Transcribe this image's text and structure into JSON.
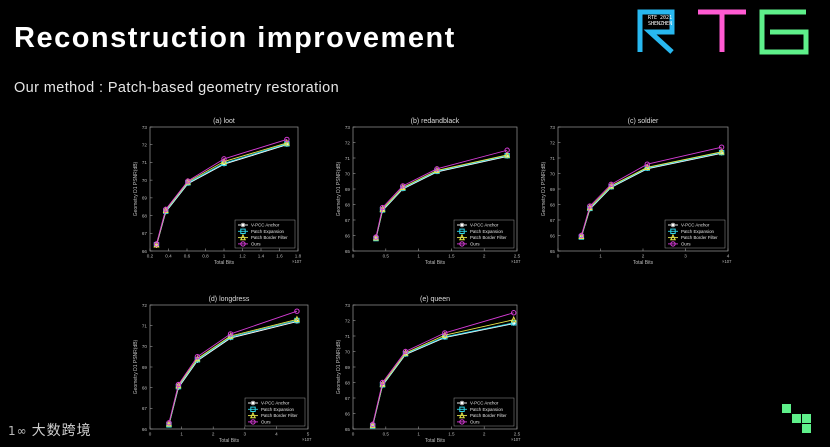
{
  "slide": {
    "title": "Reconstruction improvement",
    "subtitle": "Our method : Patch-based geometry restoration",
    "logo": {
      "text": "RTE",
      "badge_line1": "RTE 2021",
      "badge_line2": "SHENZHEN",
      "colors": [
        "#28b8f0",
        "#ff5ad2",
        "#5ef08a",
        "#9aa2ff"
      ]
    },
    "watermark": "大数跨境",
    "watermark_mark": "1∞"
  },
  "chart_data": [
    {
      "type": "line",
      "title": "(a) loot",
      "xlabel": "Total Bits",
      "ylabel": "Geometry D1 PSNR(dB)",
      "xlim": [
        0.2,
        1.8
      ],
      "ylim": [
        66,
        73
      ],
      "xticks": [
        0.2,
        0.4,
        0.6,
        0.8,
        1,
        1.2,
        1.4,
        1.6,
        1.8
      ],
      "xtick_labels": [
        "0.2",
        "0.4",
        "0.6",
        "0.8",
        "1",
        "1.2",
        "1.4",
        "1.6",
        "1.8"
      ],
      "yticks": [
        66,
        67,
        68,
        69,
        70,
        71,
        72,
        73
      ],
      "exponent": "×10^7",
      "legend_position": "bottom-right",
      "x": [
        0.27,
        0.37,
        0.61,
        1.0,
        1.68
      ],
      "series": [
        {
          "name": "V-PCC Anchor",
          "values": [
            66.3,
            68.2,
            69.8,
            70.9,
            72.0
          ]
        },
        {
          "name": "Patch Expansion",
          "values": [
            66.35,
            68.25,
            69.85,
            70.95,
            72.05
          ]
        },
        {
          "name": "Patch Border Filter",
          "values": [
            66.35,
            68.3,
            69.9,
            71.05,
            72.1
          ]
        },
        {
          "name": "Ours",
          "values": [
            66.4,
            68.35,
            69.95,
            71.2,
            72.3
          ]
        }
      ]
    },
    {
      "type": "line",
      "title": "(b) redandblack",
      "xlabel": "Total Bits",
      "ylabel": "Geometry D1 PSNR(dB)",
      "xlim": [
        0,
        2.5
      ],
      "ylim": [
        65,
        73
      ],
      "xticks": [
        0,
        0.5,
        1,
        1.5,
        2,
        2.5
      ],
      "xtick_labels": [
        "0",
        "0.5",
        "1",
        "1.5",
        "2",
        "2.5"
      ],
      "yticks": [
        65,
        66,
        67,
        68,
        69,
        70,
        71,
        72,
        73
      ],
      "exponent": "×10^7",
      "legend_position": "bottom-right",
      "x": [
        0.35,
        0.45,
        0.76,
        1.28,
        2.35
      ],
      "series": [
        {
          "name": "V-PCC Anchor",
          "values": [
            65.8,
            67.6,
            69.0,
            70.1,
            71.1
          ]
        },
        {
          "name": "Patch Expansion",
          "values": [
            65.8,
            67.65,
            69.05,
            70.15,
            71.15
          ]
        },
        {
          "name": "Patch Border Filter",
          "values": [
            65.85,
            67.7,
            69.1,
            70.2,
            71.2
          ]
        },
        {
          "name": "Ours",
          "values": [
            65.9,
            67.8,
            69.2,
            70.3,
            71.5
          ]
        }
      ]
    },
    {
      "type": "line",
      "title": "(c) soldier",
      "xlabel": "Total Bits",
      "ylabel": "Geometry D1 PSNR(dB)",
      "xlim": [
        0,
        4
      ],
      "ylim": [
        65,
        73
      ],
      "xticks": [
        0,
        1,
        2,
        3,
        4
      ],
      "xtick_labels": [
        "0",
        "1",
        "2",
        "3",
        "4"
      ],
      "yticks": [
        65,
        66,
        67,
        68,
        69,
        70,
        71,
        72,
        73
      ],
      "exponent": "×10^7",
      "legend_position": "bottom-right",
      "x": [
        0.55,
        0.75,
        1.25,
        2.1,
        3.85
      ],
      "series": [
        {
          "name": "V-PCC Anchor",
          "values": [
            65.9,
            67.7,
            69.1,
            70.3,
            71.3
          ]
        },
        {
          "name": "Patch Expansion",
          "values": [
            65.9,
            67.75,
            69.15,
            70.35,
            71.35
          ]
        },
        {
          "name": "Patch Border Filter",
          "values": [
            65.95,
            67.8,
            69.2,
            70.4,
            71.4
          ]
        },
        {
          "name": "Ours",
          "values": [
            66.0,
            67.9,
            69.3,
            70.6,
            71.7
          ]
        }
      ]
    },
    {
      "type": "line",
      "title": "(d) longdress",
      "xlabel": "Total Bits",
      "ylabel": "Geometry D1 PSNR(dB)",
      "xlim": [
        0,
        5
      ],
      "ylim": [
        66,
        72
      ],
      "xticks": [
        0,
        1,
        2,
        3,
        4,
        5
      ],
      "xtick_labels": [
        "0",
        "1",
        "2",
        "3",
        "4",
        "5"
      ],
      "yticks": [
        66,
        67,
        68,
        69,
        70,
        71,
        72
      ],
      "exponent": "×10^7",
      "legend_position": "bottom-right",
      "x": [
        0.6,
        0.9,
        1.5,
        2.55,
        4.65
      ],
      "series": [
        {
          "name": "V-PCC Anchor",
          "values": [
            66.2,
            68.0,
            69.3,
            70.4,
            71.2
          ]
        },
        {
          "name": "Patch Expansion",
          "values": [
            66.2,
            68.05,
            69.35,
            70.45,
            71.25
          ]
        },
        {
          "name": "Patch Border Filter",
          "values": [
            66.25,
            68.1,
            69.4,
            70.5,
            71.3
          ]
        },
        {
          "name": "Ours",
          "values": [
            66.3,
            68.15,
            69.5,
            70.6,
            71.7
          ]
        }
      ]
    },
    {
      "type": "line",
      "title": "(e) queen",
      "xlabel": "Total Bits",
      "ylabel": "Geometry D1 PSNR(dB)",
      "xlim": [
        0,
        2.5
      ],
      "ylim": [
        65,
        73
      ],
      "xticks": [
        0,
        0.5,
        1,
        1.5,
        2,
        2.5
      ],
      "xtick_labels": [
        "0",
        "0.5",
        "1",
        "1.5",
        "2",
        "2.5"
      ],
      "yticks": [
        65,
        66,
        67,
        68,
        69,
        70,
        71,
        72,
        73
      ],
      "exponent": "×10^7",
      "legend_position": "bottom-right",
      "x": [
        0.3,
        0.45,
        0.8,
        1.4,
        2.45
      ],
      "series": [
        {
          "name": "V-PCC Anchor",
          "values": [
            65.2,
            67.8,
            69.8,
            70.9,
            71.8
          ]
        },
        {
          "name": "Patch Expansion",
          "values": [
            65.2,
            67.85,
            69.85,
            70.95,
            71.85
          ]
        },
        {
          "name": "Patch Border Filter",
          "values": [
            65.25,
            67.9,
            69.9,
            71.05,
            72.05
          ]
        },
        {
          "name": "Ours",
          "values": [
            65.3,
            68.0,
            70.0,
            71.2,
            72.5
          ]
        }
      ]
    }
  ],
  "series_colors": [
    "#ffffff",
    "#2fd6e8",
    "#e6e64a",
    "#d63cd6"
  ],
  "series_markers": [
    "star",
    "square",
    "triangle",
    "circle"
  ]
}
